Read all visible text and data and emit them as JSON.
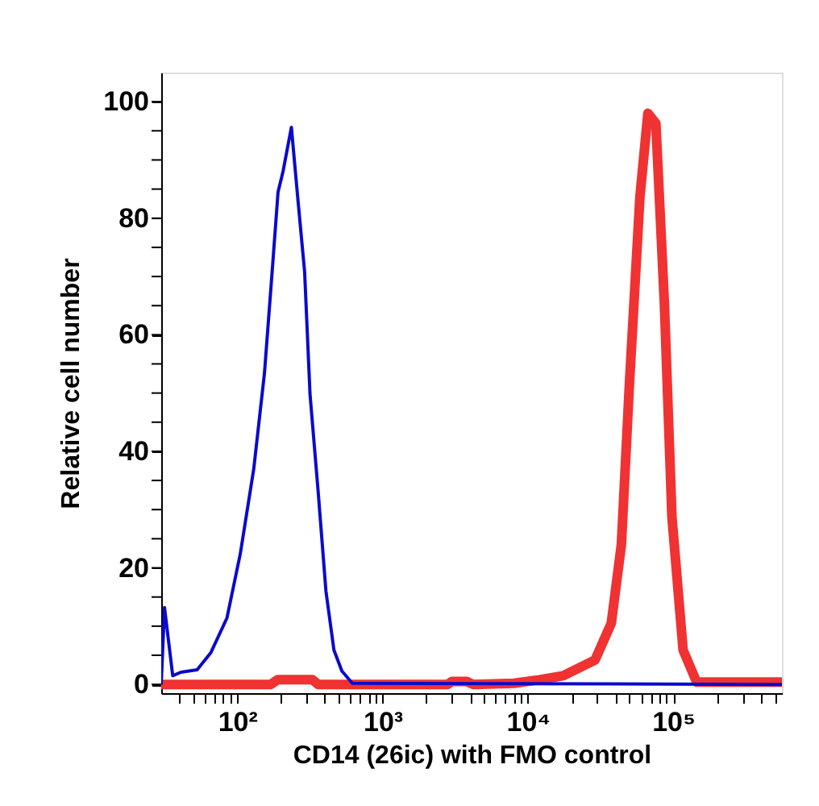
{
  "chart_data": {
    "type": "line",
    "xlabel": "CD14 (26ic) with FMO control",
    "ylabel": "Relative cell number",
    "log": "x",
    "grid": false,
    "xlim": [
      30,
      560000
    ],
    "ylim": [
      -1.5,
      105
    ],
    "xticks": [
      {
        "value": 40,
        "label": null
      },
      {
        "value": 50,
        "label": null
      },
      {
        "value": 60,
        "label": null
      },
      {
        "value": 70,
        "label": null
      },
      {
        "value": 80,
        "label": null
      },
      {
        "value": 90,
        "label": null
      },
      {
        "value": 100,
        "label": "10²"
      },
      {
        "value": 200,
        "label": null
      },
      {
        "value": 300,
        "label": null
      },
      {
        "value": 400,
        "label": null
      },
      {
        "value": 500,
        "label": null
      },
      {
        "value": 600,
        "label": null
      },
      {
        "value": 700,
        "label": null
      },
      {
        "value": 800,
        "label": null
      },
      {
        "value": 900,
        "label": null
      },
      {
        "value": 1000,
        "label": "10³"
      },
      {
        "value": 2000,
        "label": null
      },
      {
        "value": 3000,
        "label": null
      },
      {
        "value": 4000,
        "label": null
      },
      {
        "value": 5000,
        "label": null
      },
      {
        "value": 6000,
        "label": null
      },
      {
        "value": 7000,
        "label": null
      },
      {
        "value": 8000,
        "label": null
      },
      {
        "value": 9000,
        "label": null
      },
      {
        "value": 10000,
        "label": "10⁴"
      },
      {
        "value": 20000,
        "label": null
      },
      {
        "value": 30000,
        "label": null
      },
      {
        "value": 40000,
        "label": null
      },
      {
        "value": 50000,
        "label": null
      },
      {
        "value": 60000,
        "label": null
      },
      {
        "value": 70000,
        "label": null
      },
      {
        "value": 80000,
        "label": null
      },
      {
        "value": 90000,
        "label": null
      },
      {
        "value": 100000,
        "label": "10⁵"
      },
      {
        "value": 200000,
        "label": null
      },
      {
        "value": 300000,
        "label": null
      },
      {
        "value": 400000,
        "label": null
      },
      {
        "value": 500000,
        "label": null
      }
    ],
    "yticks": [
      0,
      {
        "value": 5,
        "label": null
      },
      {
        "value": 10,
        "label": null
      },
      {
        "value": 15,
        "label": null
      },
      20,
      {
        "value": 25,
        "label": null
      },
      {
        "value": 30,
        "label": null
      },
      {
        "value": 35,
        "label": null
      },
      40,
      {
        "value": 45,
        "label": null
      },
      {
        "value": 50,
        "label": null
      },
      {
        "value": 55,
        "label": null
      },
      60,
      {
        "value": 65,
        "label": null
      },
      {
        "value": 70,
        "label": null
      },
      {
        "value": 75,
        "label": null
      },
      80,
      {
        "value": 85,
        "label": null
      },
      {
        "value": 90,
        "label": null
      },
      {
        "value": 95,
        "label": null
      },
      100
    ],
    "marker": "none",
    "line_style": "solid",
    "series": [
      {
        "color": "#f03232",
        "x": [
          30,
          170,
          190,
          330,
          360,
          2800,
          3000,
          3800,
          4200,
          8000,
          12000,
          17500,
          29000,
          37500,
          44000,
          50000,
          59000,
          67000,
          76000,
          87000,
          98000,
          117000,
          145000,
          560000
        ],
        "values": [
          0,
          0,
          0.8,
          0.8,
          0,
          0,
          0.5,
          0.5,
          0,
          0.2,
          0.8,
          1.5,
          4.2,
          10.5,
          24,
          51.6,
          83.6,
          98,
          96.3,
          65.3,
          28.8,
          5.9,
          0.4,
          0.4
        ]
      },
      {
        "color": "#0a0acd",
        "x": [
          30,
          31.6,
          36,
          41,
          53,
          66,
          85,
          105,
          130,
          154,
          175,
          191,
          207,
          236,
          263,
          291,
          317,
          360,
          408,
          463,
          525,
          620,
          560000
        ],
        "values": [
          0,
          13.2,
          1.5,
          2.1,
          2.5,
          5.5,
          11.4,
          22.4,
          37,
          53.4,
          71.7,
          84.5,
          88.1,
          95.6,
          82.6,
          70.8,
          49.8,
          33.3,
          16,
          5.9,
          2.3,
          0.2,
          0
        ]
      }
    ]
  }
}
